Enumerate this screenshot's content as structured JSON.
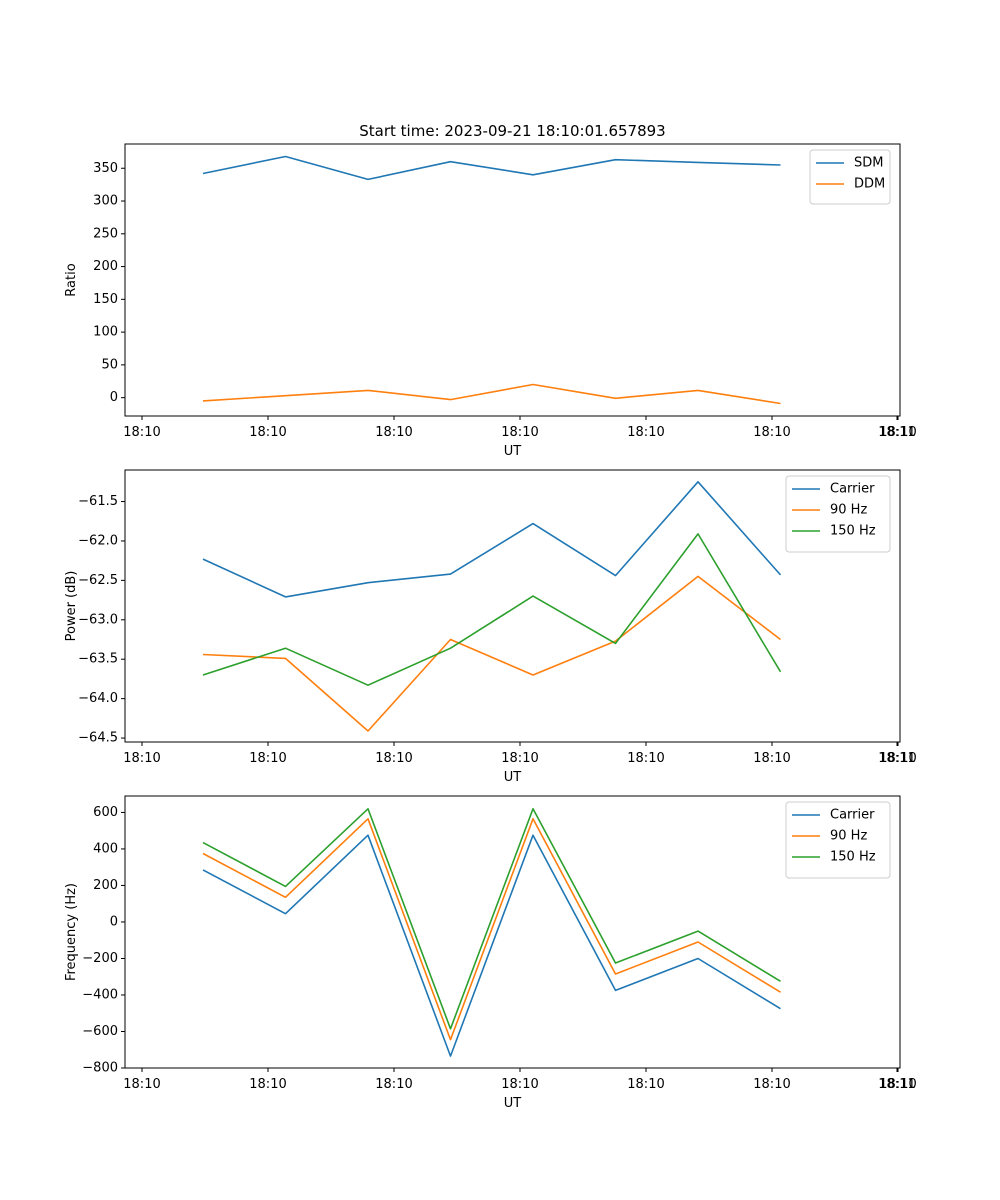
{
  "chart_data": [
    {
      "type": "line",
      "title": "Start time: 2023-09-21 18:10:01.657893",
      "xlabel": "UT",
      "ylabel": "Ratio",
      "x_tick_labels": [
        "18:10",
        "18:10",
        "18:10",
        "18:10",
        "18:10",
        "18:10",
        "18:10",
        "18:11"
      ],
      "y_ticks": [
        0,
        50,
        100,
        150,
        200,
        250,
        300,
        350
      ],
      "ylim": [
        -28,
        387
      ],
      "legend_location": "top-right",
      "series": [
        {
          "name": "SDM",
          "color": "#1f77b4",
          "values": [
            342,
            368,
            333,
            360,
            340,
            363,
            359,
            355
          ]
        },
        {
          "name": "DDM",
          "color": "#ff7f0e",
          "values": [
            -5,
            3,
            11,
            -3,
            20,
            -1,
            11,
            -9
          ]
        }
      ]
    },
    {
      "type": "line",
      "title": "",
      "xlabel": "UT",
      "ylabel": "Power (dB)",
      "x_tick_labels": [
        "18:10",
        "18:10",
        "18:10",
        "18:10",
        "18:10",
        "18:10",
        "18:10",
        "18:11"
      ],
      "y_ticks": [
        -64.5,
        -64.0,
        -63.5,
        -63.0,
        -62.5,
        -62.0,
        -61.5
      ],
      "y_tick_labels": [
        "−64.5",
        "−64.0",
        "−63.5",
        "−63.0",
        "−62.5",
        "−62.0",
        "−61.5"
      ],
      "ylim": [
        -64.55,
        -61.1
      ],
      "legend_location": "top-right",
      "series": [
        {
          "name": "Carrier",
          "color": "#1f77b4",
          "values": [
            -62.23,
            -62.71,
            -62.53,
            -62.42,
            -61.78,
            -62.44,
            -61.25,
            -62.43
          ]
        },
        {
          "name": "90 Hz",
          "color": "#ff7f0e",
          "values": [
            -63.44,
            -63.49,
            -64.41,
            -63.25,
            -63.7,
            -63.27,
            -62.45,
            -63.25
          ]
        },
        {
          "name": "150 Hz",
          "color": "#2ca02c",
          "values": [
            -63.7,
            -63.36,
            -63.83,
            -63.36,
            -62.7,
            -63.3,
            -61.91,
            -63.66
          ]
        }
      ]
    },
    {
      "type": "line",
      "title": "",
      "xlabel": "UT",
      "ylabel": "Frequency (Hz)",
      "x_tick_labels": [
        "18:10",
        "18:10",
        "18:10",
        "18:10",
        "18:10",
        "18:10",
        "18:10",
        "18:11"
      ],
      "y_ticks": [
        -800,
        -600,
        -400,
        -200,
        0,
        200,
        400,
        600
      ],
      "y_tick_labels": [
        "−800",
        "−600",
        "−400",
        "−200",
        "0",
        "200",
        "400",
        "600"
      ],
      "ylim": [
        -800,
        690
      ],
      "legend_location": "top-right",
      "series": [
        {
          "name": "Carrier",
          "color": "#1f77b4",
          "values": [
            285,
            45,
            475,
            -735,
            475,
            -375,
            -200,
            -475
          ]
        },
        {
          "name": "90 Hz",
          "color": "#ff7f0e",
          "values": [
            375,
            135,
            565,
            -645,
            565,
            -285,
            -110,
            -385
          ]
        },
        {
          "name": "150 Hz",
          "color": "#2ca02c",
          "values": [
            435,
            195,
            620,
            -585,
            620,
            -225,
            -50,
            -325
          ]
        }
      ]
    }
  ]
}
